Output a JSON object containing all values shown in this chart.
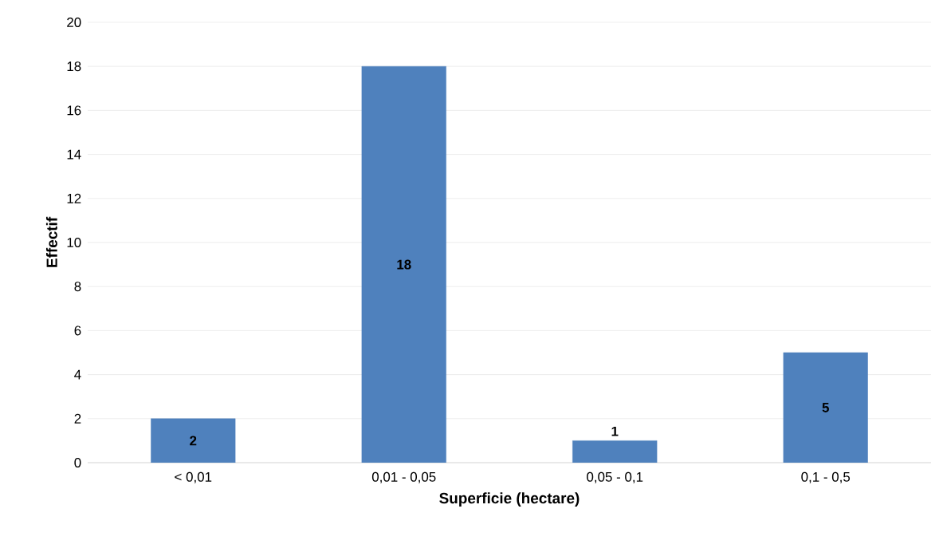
{
  "chart_data": {
    "type": "bar",
    "xlabel": "Superficie (hectare)",
    "ylabel": "Effectif",
    "categories": [
      "< 0,01",
      "0,01 - 0,05",
      "0,05 - 0,1",
      "0,1 - 0,5"
    ],
    "values": [
      2,
      18,
      1,
      5
    ],
    "color": "#4f81bd",
    "ylim": [
      0,
      20
    ],
    "yticks": [
      0,
      2,
      4,
      6,
      8,
      10,
      12,
      14,
      16,
      18,
      20
    ],
    "grid": "y",
    "data_labels": true
  }
}
